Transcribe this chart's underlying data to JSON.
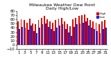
{
  "title": "Milwaukee Weather Dew Point",
  "subtitle": "Daily High/Low",
  "high_values": [
    55,
    60,
    58,
    52,
    62,
    50,
    48,
    58,
    64,
    68,
    60,
    55,
    52,
    58,
    62,
    64,
    56,
    48,
    44,
    60,
    64,
    68,
    70,
    72,
    64,
    58,
    55,
    52,
    48,
    56,
    58
  ],
  "low_values": [
    38,
    42,
    40,
    36,
    45,
    32,
    28,
    40,
    48,
    50,
    43,
    38,
    32,
    40,
    45,
    48,
    38,
    30,
    22,
    43,
    48,
    50,
    52,
    55,
    45,
    40,
    38,
    32,
    28,
    38,
    40
  ],
  "high_color": "#dd0000",
  "low_color": "#2222cc",
  "background_color": "#ffffff",
  "ylim": [
    -10,
    80
  ],
  "ytick_step": 10,
  "title_fontsize": 4.5,
  "tick_fontsize": 4,
  "bar_width": 0.45,
  "n_days": 31,
  "legend_high": "High",
  "legend_low": "Low",
  "xtick_every": 2
}
